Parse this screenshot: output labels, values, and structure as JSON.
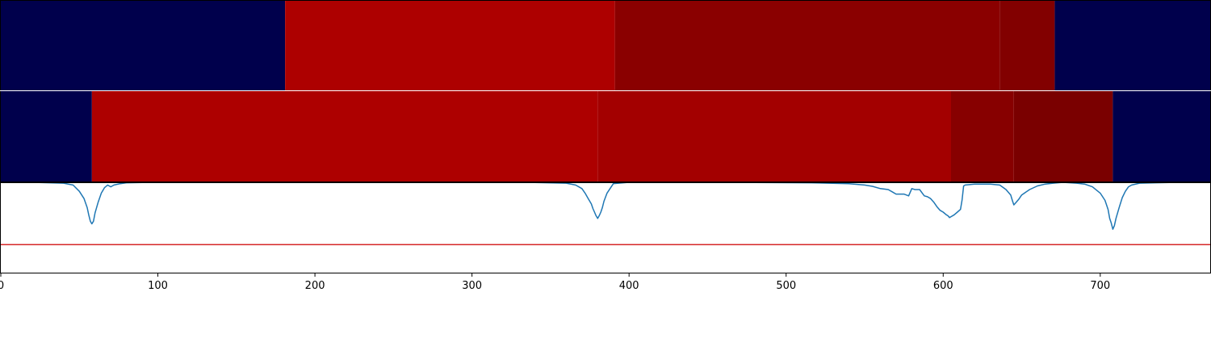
{
  "chart_data": [
    {
      "type": "heatmap",
      "panel": "top-band",
      "xlim": [
        0,
        770
      ],
      "segments": [
        {
          "start": 0,
          "end": 181,
          "color": "#00004c"
        },
        {
          "start": 181,
          "end": 391,
          "color": "#ad0000"
        },
        {
          "start": 391,
          "end": 636,
          "color": "#8a0000"
        },
        {
          "start": 636,
          "end": 671,
          "color": "#820000"
        },
        {
          "start": 671,
          "end": 770,
          "color": "#00004c"
        }
      ]
    },
    {
      "type": "heatmap",
      "panel": "middle-band",
      "xlim": [
        0,
        770
      ],
      "segments": [
        {
          "start": 0,
          "end": 58,
          "color": "#00004c"
        },
        {
          "start": 58,
          "end": 380,
          "color": "#ad0000"
        },
        {
          "start": 380,
          "end": 605,
          "color": "#a30000"
        },
        {
          "start": 605,
          "end": 645,
          "color": "#870000"
        },
        {
          "start": 645,
          "end": 708,
          "color": "#7a0000"
        },
        {
          "start": 708,
          "end": 770,
          "color": "#00004c"
        }
      ]
    },
    {
      "type": "line",
      "panel": "signal",
      "xlim": [
        0,
        770
      ],
      "ylim": [
        0,
        1
      ],
      "xticks": [
        "0",
        "100",
        "200",
        "300",
        "400",
        "500",
        "600",
        "700"
      ],
      "xtick_values": [
        0,
        100,
        200,
        300,
        400,
        500,
        600,
        700
      ],
      "threshold": {
        "y": 0.31,
        "color": "#d62728"
      },
      "series": [
        {
          "color": "#1f77b4",
          "x": [
            20,
            40,
            46,
            50,
            53,
            55,
            56,
            57,
            58,
            59,
            60,
            62,
            64,
            66,
            68,
            70,
            72,
            76,
            80,
            90,
            110,
            150,
            200,
            250,
            300,
            340,
            360,
            366,
            370,
            372,
            374,
            376,
            377,
            378,
            379,
            380,
            381,
            382,
            383,
            384,
            386,
            390,
            400,
            450,
            516,
            540,
            550,
            555,
            560,
            565,
            568,
            570,
            575,
            578,
            580,
            582,
            585,
            588,
            590,
            592,
            594,
            596,
            598,
            600,
            602,
            603,
            604,
            605,
            607,
            609,
            611,
            612,
            613,
            614,
            620,
            630,
            636,
            640,
            643,
            644,
            645,
            646,
            648,
            650,
            655,
            660,
            665,
            670,
            675,
            676,
            678,
            685,
            690,
            695,
            700,
            703,
            705,
            706,
            707,
            708,
            709,
            710,
            712,
            714,
            716,
            718,
            720,
            725,
            735,
            750
          ],
          "y": [
            1.0,
            0.99,
            0.97,
            0.9,
            0.82,
            0.72,
            0.64,
            0.57,
            0.54,
            0.57,
            0.66,
            0.78,
            0.88,
            0.94,
            0.97,
            0.95,
            0.97,
            0.985,
            0.995,
            0.998,
            0.999,
            1.0,
            1.0,
            1.0,
            1.0,
            0.998,
            0.99,
            0.97,
            0.93,
            0.88,
            0.82,
            0.76,
            0.71,
            0.67,
            0.63,
            0.6,
            0.63,
            0.67,
            0.72,
            0.79,
            0.88,
            0.985,
            1.0,
            1.0,
            0.995,
            0.985,
            0.97,
            0.955,
            0.93,
            0.92,
            0.89,
            0.87,
            0.87,
            0.85,
            0.93,
            0.92,
            0.92,
            0.85,
            0.84,
            0.82,
            0.78,
            0.73,
            0.69,
            0.67,
            0.64,
            0.63,
            0.61,
            0.62,
            0.64,
            0.67,
            0.7,
            0.8,
            0.96,
            0.97,
            0.98,
            0.98,
            0.97,
            0.92,
            0.86,
            0.8,
            0.75,
            0.77,
            0.81,
            0.86,
            0.92,
            0.96,
            0.98,
            0.99,
            0.998,
            1.0,
            0.998,
            0.99,
            0.98,
            0.95,
            0.88,
            0.8,
            0.7,
            0.6,
            0.55,
            0.48,
            0.52,
            0.6,
            0.72,
            0.83,
            0.9,
            0.95,
            0.97,
            0.99,
            0.995,
            1.0
          ]
        }
      ]
    }
  ]
}
